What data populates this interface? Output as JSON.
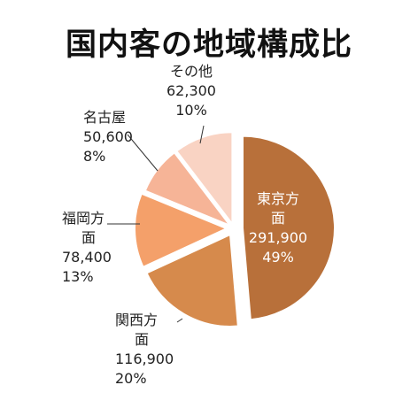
{
  "chart_data": {
    "type": "pie",
    "title": "国内客の地域構成比",
    "slices": [
      {
        "name": "東京方面",
        "value": 291900,
        "pct": 49,
        "value_label": "291,900",
        "pct_label": "49%",
        "color": "#B8703A"
      },
      {
        "name": "関西方面",
        "value": 116900,
        "pct": 20,
        "value_label": "116,900",
        "pct_label": "20%",
        "color": "#D68A4C"
      },
      {
        "name": "福岡方面",
        "value": 78400,
        "pct": 13,
        "value_label": "78,400",
        "pct_label": "13%",
        "color": "#F4A06A"
      },
      {
        "name": "名古屋",
        "value": 50600,
        "pct": 8,
        "value_label": "50,600",
        "pct_label": "8%",
        "color": "#F6B497"
      },
      {
        "name": "その他",
        "value": 62300,
        "pct": 10,
        "value_label": "62,300",
        "pct_label": "10%",
        "color": "#F9D3C3"
      }
    ],
    "label_lines": {
      "東京方面": [
        "東京方",
        "面"
      ],
      "関西方面": [
        "関西方",
        "面"
      ],
      "福岡方面": [
        "福岡方",
        "面"
      ],
      "名古屋": [
        "名古屋"
      ],
      "その他": [
        "その他"
      ]
    },
    "legend": "none"
  }
}
